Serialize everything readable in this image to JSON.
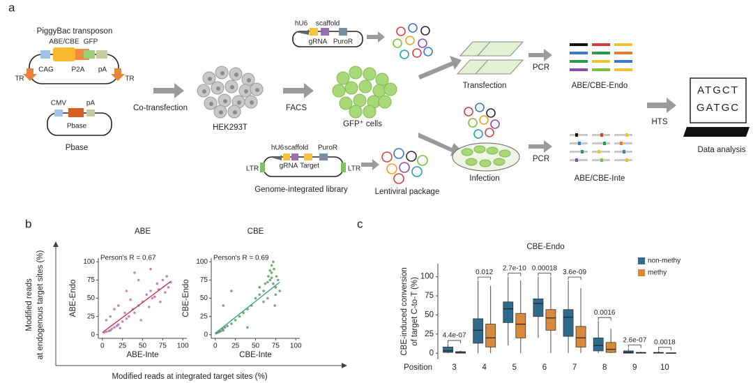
{
  "diagram": {
    "panel_label": "a",
    "piggybac_title": "PiggyBac transposon",
    "abe_cbe": "ABE/CBE",
    "gfp": "GFP",
    "cag": "CAG",
    "p2a": "P2A",
    "pa1": "pA",
    "tr_left": "TR",
    "tr_right": "TR",
    "cmv": "CMV",
    "pa2": "pA",
    "pbase_inner": "Pbase",
    "pbase_label": "Pbase",
    "cotransfection": "Co-transfection",
    "hek": "HEK293T",
    "facs": "FACS",
    "gfp_cells": "GFP⁺ cells",
    "top_hu6": "hU6",
    "top_scaffold": "scaffold",
    "top_grna": "gRNA",
    "top_puror": "PuroR",
    "transfection": "Transfection",
    "pcr_top": "PCR",
    "endo": "ABE/CBE-Endo",
    "hts": "HTS",
    "seq1": "ATGCT",
    "seq2": "GATGC",
    "data_analysis": "Data analysis",
    "lib_hu6": "hU6",
    "lib_scaffold": "scaffold",
    "lib_puror": "PuroR",
    "lib_grna": "gRNA",
    "lib_target": "Target",
    "ltr_left": "LTR",
    "ltr_right": "LTR",
    "library": "Genome-integrated library",
    "lentiviral": "Lentiviral  package",
    "infection": "Infection",
    "pcr_bottom": "PCR",
    "inte": "ABE/CBE-Inte"
  },
  "panel_b": {
    "label": "b",
    "ylabel": [
      "Modified reads",
      "at endogenous target sites (%)"
    ],
    "xlabel": "Modified reads at integrated target sites (%)"
  },
  "panel_c_label": "c",
  "chart_data": [
    {
      "type": "scatter",
      "title": "ABE",
      "xlabel": "ABE-Inte",
      "ylabel": "ABE-Endo",
      "annotation": "Person's R = 0.67",
      "xlim": [
        -5,
        105
      ],
      "ylim": [
        -5,
        105
      ],
      "xticks": [
        0,
        25,
        50,
        75,
        100
      ],
      "yticks": [
        0,
        25,
        50,
        75,
        100
      ],
      "color": "#9a4a9a",
      "x": [
        2,
        5,
        8,
        10,
        12,
        15,
        18,
        20,
        22,
        25,
        28,
        30,
        33,
        35,
        38,
        40,
        45,
        48,
        50,
        55,
        58,
        60,
        62,
        65,
        68,
        70,
        72,
        75,
        78,
        80,
        82,
        85,
        10,
        20,
        30,
        45,
        60,
        5,
        15,
        40
      ],
      "values": [
        3,
        4,
        5,
        6,
        8,
        10,
        12,
        14,
        9,
        18,
        30,
        22,
        25,
        48,
        35,
        30,
        40,
        20,
        45,
        55,
        38,
        60,
        50,
        52,
        70,
        62,
        45,
        75,
        58,
        80,
        65,
        72,
        25,
        40,
        60,
        75,
        90,
        20,
        35,
        85
      ],
      "trendline": {
        "color": "#d0304a",
        "x": [
          0,
          85
        ],
        "values": [
          3,
          73
        ]
      }
    },
    {
      "type": "scatter",
      "title": "CBE",
      "xlabel": "CBE-Inte",
      "ylabel": "CBE-Endo",
      "annotation": "Person's R = 0.69",
      "xlim": [
        -5,
        105
      ],
      "ylim": [
        -5,
        105
      ],
      "xticks": [
        0,
        25,
        50,
        75,
        100
      ],
      "yticks": [
        0,
        25,
        50,
        75,
        100
      ],
      "color": "#2f7a2a",
      "x": [
        1,
        3,
        5,
        7,
        9,
        10,
        12,
        15,
        20,
        25,
        30,
        35,
        40,
        45,
        50,
        55,
        60,
        62,
        65,
        66,
        68,
        70,
        70,
        72,
        73,
        75,
        76,
        78,
        80,
        65,
        70,
        72,
        60,
        55,
        75,
        20,
        10,
        40,
        68,
        74
      ],
      "values": [
        2,
        3,
        4,
        5,
        8,
        6,
        10,
        12,
        15,
        20,
        25,
        30,
        35,
        40,
        50,
        55,
        60,
        70,
        72,
        80,
        75,
        78,
        85,
        70,
        90,
        65,
        80,
        75,
        60,
        50,
        95,
        100,
        45,
        65,
        55,
        60,
        40,
        10,
        88,
        40
      ],
      "trendline": {
        "color": "#3aa38f",
        "x": [
          0,
          80
        ],
        "values": [
          2,
          72
        ]
      }
    },
    {
      "type": "box",
      "title": "CBE-Endo",
      "ylabel": [
        "CBE-induced conversion",
        "of target C-to-T (%)"
      ],
      "xlabel": "Position",
      "categories": [
        "3",
        "4",
        "5",
        "6",
        "7",
        "8",
        "9",
        "10"
      ],
      "ylim": [
        -8,
        117
      ],
      "yticks": [
        0,
        25,
        50,
        75,
        100
      ],
      "legend": "top-right",
      "series": [
        {
          "name": "non-methy",
          "color": "#2e6b8c",
          "min": [
            0,
            0,
            10,
            20,
            0,
            0,
            0,
            0
          ],
          "q1": [
            1,
            13,
            40,
            48,
            22,
            3,
            0,
            0
          ],
          "median": [
            3,
            30,
            58,
            65,
            47,
            10,
            1,
            0.5
          ],
          "q3": [
            8,
            45,
            67,
            71,
            57,
            20,
            3,
            1
          ],
          "max": [
            12,
            95,
            100,
            100,
            95,
            42,
            6,
            3
          ]
        },
        {
          "name": "methy",
          "color": "#d9893a",
          "min": [
            0,
            0,
            0,
            0,
            0,
            0,
            0,
            0
          ],
          "q1": [
            0,
            8,
            20,
            30,
            8,
            1,
            0,
            0
          ],
          "median": [
            1,
            20,
            38,
            46,
            20,
            5,
            0.5,
            0
          ],
          "q3": [
            2,
            38,
            52,
            57,
            35,
            14,
            1,
            0.5
          ],
          "max": [
            3,
            88,
            95,
            100,
            85,
            32,
            2,
            1
          ]
        }
      ],
      "p_values": [
        "4.4e-07",
        "0.012",
        "2.7e-10",
        "0.00018",
        "3.6e-09",
        "0.0016",
        "2.6e-07",
        "0.0018"
      ]
    }
  ]
}
